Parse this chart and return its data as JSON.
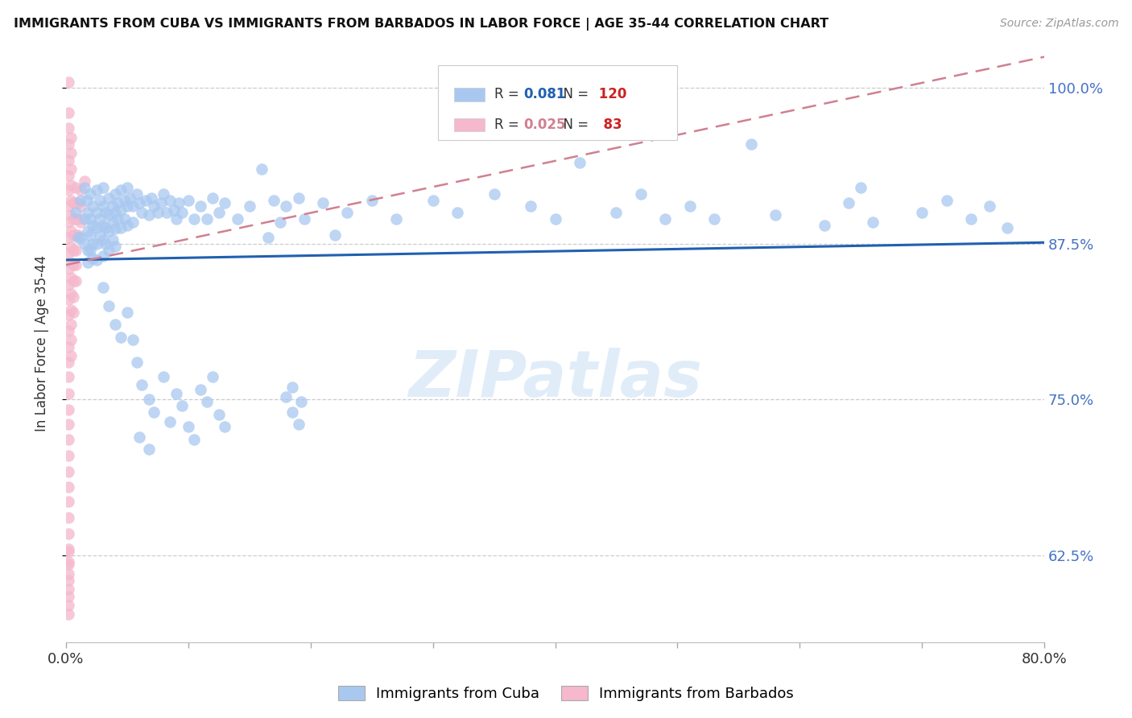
{
  "title": "IMMIGRANTS FROM CUBA VS IMMIGRANTS FROM BARBADOS IN LABOR FORCE | AGE 35-44 CORRELATION CHART",
  "source": "Source: ZipAtlas.com",
  "ylabel": "In Labor Force | Age 35-44",
  "y_tick_values": [
    0.625,
    0.75,
    0.875,
    1.0
  ],
  "y_tick_labels": [
    "62.5%",
    "75.0%",
    "87.5%",
    "100.0%"
  ],
  "xlim": [
    0.0,
    0.8
  ],
  "ylim": [
    0.555,
    1.035
  ],
  "legend_bottom_labels": [
    "Immigrants from Cuba",
    "Immigrants from Barbados"
  ],
  "cuba_color": "#a8c8f0",
  "barbados_color": "#f5b8cc",
  "cuba_line_color": "#2060b0",
  "barbados_line_color": "#d08090",
  "cuba_R": 0.081,
  "cuba_N": 120,
  "barbados_R": 0.025,
  "barbados_N": 83,
  "watermark": "ZIPatlas",
  "background_color": "#ffffff",
  "grid_color": "#cccccc",
  "right_label_color": "#4472c4",
  "cuba_line_x": [
    0.0,
    0.8
  ],
  "cuba_line_y": [
    0.862,
    0.876
  ],
  "barbados_line_x": [
    0.0,
    0.8
  ],
  "barbados_line_y": [
    0.858,
    1.025
  ],
  "cuba_scatter": [
    [
      0.008,
      0.9
    ],
    [
      0.01,
      0.88
    ],
    [
      0.012,
      0.91
    ],
    [
      0.012,
      0.88
    ],
    [
      0.015,
      0.92
    ],
    [
      0.015,
      0.895
    ],
    [
      0.015,
      0.875
    ],
    [
      0.017,
      0.91
    ],
    [
      0.018,
      0.9
    ],
    [
      0.018,
      0.885
    ],
    [
      0.018,
      0.87
    ],
    [
      0.018,
      0.86
    ],
    [
      0.02,
      0.915
    ],
    [
      0.02,
      0.895
    ],
    [
      0.02,
      0.882
    ],
    [
      0.02,
      0.87
    ],
    [
      0.022,
      0.905
    ],
    [
      0.022,
      0.89
    ],
    [
      0.022,
      0.875
    ],
    [
      0.022,
      0.863
    ],
    [
      0.025,
      0.918
    ],
    [
      0.025,
      0.9
    ],
    [
      0.025,
      0.888
    ],
    [
      0.025,
      0.875
    ],
    [
      0.025,
      0.862
    ],
    [
      0.028,
      0.91
    ],
    [
      0.028,
      0.895
    ],
    [
      0.028,
      0.882
    ],
    [
      0.03,
      0.92
    ],
    [
      0.03,
      0.905
    ],
    [
      0.03,
      0.89
    ],
    [
      0.03,
      0.878
    ],
    [
      0.03,
      0.865
    ],
    [
      0.032,
      0.9
    ],
    [
      0.032,
      0.888
    ],
    [
      0.032,
      0.875
    ],
    [
      0.035,
      0.912
    ],
    [
      0.035,
      0.898
    ],
    [
      0.035,
      0.885
    ],
    [
      0.035,
      0.87
    ],
    [
      0.038,
      0.905
    ],
    [
      0.038,
      0.892
    ],
    [
      0.038,
      0.878
    ],
    [
      0.04,
      0.915
    ],
    [
      0.04,
      0.9
    ],
    [
      0.04,
      0.887
    ],
    [
      0.04,
      0.873
    ],
    [
      0.042,
      0.908
    ],
    [
      0.042,
      0.895
    ],
    [
      0.045,
      0.918
    ],
    [
      0.045,
      0.902
    ],
    [
      0.045,
      0.888
    ],
    [
      0.048,
      0.91
    ],
    [
      0.048,
      0.895
    ],
    [
      0.05,
      0.92
    ],
    [
      0.05,
      0.905
    ],
    [
      0.05,
      0.89
    ],
    [
      0.052,
      0.912
    ],
    [
      0.055,
      0.905
    ],
    [
      0.055,
      0.892
    ],
    [
      0.058,
      0.915
    ],
    [
      0.06,
      0.908
    ],
    [
      0.062,
      0.9
    ],
    [
      0.065,
      0.91
    ],
    [
      0.068,
      0.898
    ],
    [
      0.07,
      0.912
    ],
    [
      0.072,
      0.905
    ],
    [
      0.075,
      0.9
    ],
    [
      0.078,
      0.908
    ],
    [
      0.08,
      0.915
    ],
    [
      0.082,
      0.9
    ],
    [
      0.085,
      0.91
    ],
    [
      0.088,
      0.902
    ],
    [
      0.09,
      0.895
    ],
    [
      0.092,
      0.908
    ],
    [
      0.095,
      0.9
    ],
    [
      0.1,
      0.91
    ],
    [
      0.105,
      0.895
    ],
    [
      0.11,
      0.905
    ],
    [
      0.115,
      0.895
    ],
    [
      0.12,
      0.912
    ],
    [
      0.125,
      0.9
    ],
    [
      0.13,
      0.908
    ],
    [
      0.14,
      0.895
    ],
    [
      0.15,
      0.905
    ],
    [
      0.16,
      0.935
    ],
    [
      0.165,
      0.88
    ],
    [
      0.17,
      0.91
    ],
    [
      0.175,
      0.892
    ],
    [
      0.18,
      0.905
    ],
    [
      0.19,
      0.912
    ],
    [
      0.195,
      0.895
    ],
    [
      0.21,
      0.908
    ],
    [
      0.22,
      0.882
    ],
    [
      0.23,
      0.9
    ],
    [
      0.25,
      0.91
    ],
    [
      0.27,
      0.895
    ],
    [
      0.3,
      0.91
    ],
    [
      0.32,
      0.9
    ],
    [
      0.35,
      0.915
    ],
    [
      0.38,
      0.905
    ],
    [
      0.4,
      0.895
    ],
    [
      0.42,
      0.94
    ],
    [
      0.45,
      0.9
    ],
    [
      0.47,
      0.915
    ],
    [
      0.49,
      0.895
    ],
    [
      0.51,
      0.905
    ],
    [
      0.53,
      0.895
    ],
    [
      0.56,
      0.955
    ],
    [
      0.58,
      0.898
    ],
    [
      0.62,
      0.89
    ],
    [
      0.64,
      0.908
    ],
    [
      0.65,
      0.92
    ],
    [
      0.66,
      0.892
    ],
    [
      0.7,
      0.9
    ],
    [
      0.72,
      0.91
    ],
    [
      0.74,
      0.895
    ],
    [
      0.755,
      0.905
    ],
    [
      0.77,
      0.888
    ],
    [
      0.03,
      0.84
    ],
    [
      0.035,
      0.825
    ],
    [
      0.04,
      0.81
    ],
    [
      0.045,
      0.8
    ],
    [
      0.05,
      0.82
    ],
    [
      0.055,
      0.798
    ],
    [
      0.058,
      0.78
    ],
    [
      0.062,
      0.762
    ],
    [
      0.068,
      0.75
    ],
    [
      0.072,
      0.74
    ],
    [
      0.08,
      0.768
    ],
    [
      0.085,
      0.732
    ],
    [
      0.09,
      0.755
    ],
    [
      0.095,
      0.745
    ],
    [
      0.1,
      0.728
    ],
    [
      0.105,
      0.718
    ],
    [
      0.11,
      0.758
    ],
    [
      0.115,
      0.748
    ],
    [
      0.12,
      0.768
    ],
    [
      0.125,
      0.738
    ],
    [
      0.13,
      0.728
    ],
    [
      0.18,
      0.752
    ],
    [
      0.185,
      0.74
    ],
    [
      0.19,
      0.73
    ],
    [
      0.185,
      0.76
    ],
    [
      0.192,
      0.748
    ],
    [
      0.06,
      0.72
    ],
    [
      0.068,
      0.71
    ]
  ],
  "barbados_scatter": [
    [
      0.002,
      1.005
    ],
    [
      0.002,
      0.98
    ],
    [
      0.002,
      0.968
    ],
    [
      0.002,
      0.955
    ],
    [
      0.002,
      0.942
    ],
    [
      0.002,
      0.93
    ],
    [
      0.002,
      0.918
    ],
    [
      0.002,
      0.905
    ],
    [
      0.002,
      0.892
    ],
    [
      0.002,
      0.88
    ],
    [
      0.002,
      0.868
    ],
    [
      0.002,
      0.855
    ],
    [
      0.002,
      0.842
    ],
    [
      0.002,
      0.83
    ],
    [
      0.002,
      0.818
    ],
    [
      0.002,
      0.805
    ],
    [
      0.002,
      0.792
    ],
    [
      0.002,
      0.78
    ],
    [
      0.002,
      0.768
    ],
    [
      0.002,
      0.755
    ],
    [
      0.002,
      0.742
    ],
    [
      0.002,
      0.73
    ],
    [
      0.002,
      0.718
    ],
    [
      0.002,
      0.705
    ],
    [
      0.002,
      0.692
    ],
    [
      0.002,
      0.68
    ],
    [
      0.002,
      0.668
    ],
    [
      0.002,
      0.655
    ],
    [
      0.002,
      0.642
    ],
    [
      0.002,
      0.63
    ],
    [
      0.002,
      0.618
    ],
    [
      0.002,
      0.605
    ],
    [
      0.002,
      0.62
    ],
    [
      0.002,
      0.592
    ],
    [
      0.002,
      0.578
    ],
    [
      0.004,
      0.96
    ],
    [
      0.004,
      0.948
    ],
    [
      0.004,
      0.935
    ],
    [
      0.004,
      0.922
    ],
    [
      0.004,
      0.91
    ],
    [
      0.004,
      0.898
    ],
    [
      0.004,
      0.885
    ],
    [
      0.004,
      0.872
    ],
    [
      0.004,
      0.86
    ],
    [
      0.004,
      0.848
    ],
    [
      0.004,
      0.835
    ],
    [
      0.004,
      0.822
    ],
    [
      0.004,
      0.81
    ],
    [
      0.004,
      0.798
    ],
    [
      0.004,
      0.785
    ],
    [
      0.006,
      0.908
    ],
    [
      0.006,
      0.895
    ],
    [
      0.006,
      0.882
    ],
    [
      0.006,
      0.87
    ],
    [
      0.006,
      0.858
    ],
    [
      0.006,
      0.845
    ],
    [
      0.006,
      0.832
    ],
    [
      0.006,
      0.82
    ],
    [
      0.008,
      0.92
    ],
    [
      0.008,
      0.908
    ],
    [
      0.008,
      0.895
    ],
    [
      0.008,
      0.882
    ],
    [
      0.008,
      0.87
    ],
    [
      0.008,
      0.858
    ],
    [
      0.008,
      0.845
    ],
    [
      0.01,
      0.908
    ],
    [
      0.01,
      0.895
    ],
    [
      0.01,
      0.882
    ],
    [
      0.012,
      0.918
    ],
    [
      0.012,
      0.905
    ],
    [
      0.012,
      0.892
    ],
    [
      0.015,
      0.925
    ],
    [
      0.002,
      0.628
    ],
    [
      0.002,
      0.61
    ],
    [
      0.002,
      0.598
    ],
    [
      0.002,
      0.585
    ]
  ]
}
